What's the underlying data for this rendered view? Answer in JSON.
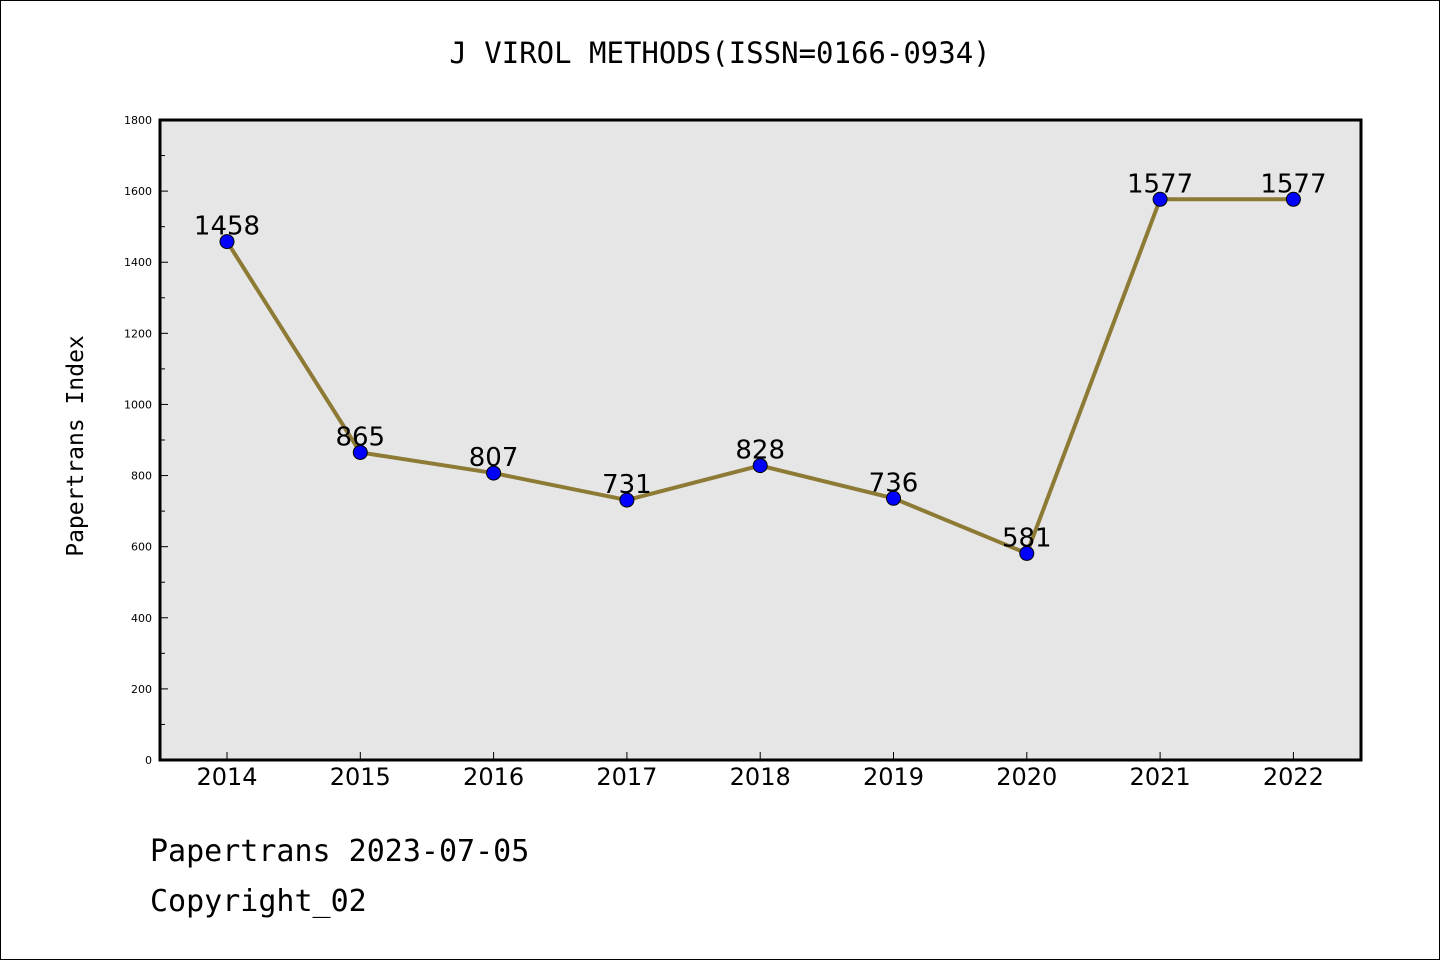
{
  "chart_data": {
    "type": "line",
    "title": "J VIROL METHODS(ISSN=0166-0934)",
    "xlabel": "",
    "ylabel": "Papertrans Index",
    "categories": [
      "2014",
      "2015",
      "2016",
      "2017",
      "2018",
      "2019",
      "2020",
      "2021",
      "2022"
    ],
    "series": [
      {
        "name": "Papertrans Index",
        "values": [
          1458,
          865,
          807,
          731,
          828,
          736,
          581,
          1577,
          1577
        ],
        "line_color": "#8c7a35",
        "marker_color": "#0000ff"
      }
    ],
    "data_labels": [
      "1458",
      "865",
      "807",
      "731",
      "828",
      "736",
      "581",
      "1577",
      "1577"
    ],
    "ylim": [
      0,
      1800
    ],
    "yticks": [
      0,
      200,
      400,
      600,
      800,
      1000,
      1200,
      1400,
      1600,
      1800
    ],
    "ytick_labels": [
      "0",
      "200",
      "400",
      "600",
      "800",
      "1000",
      "1200",
      "1400",
      "1600",
      "1800"
    ],
    "grid": false,
    "plot_background": "#e6e6e6"
  },
  "footer": {
    "date_text": "Papertrans 2023-07-05",
    "copyright_text": "Copyright_02"
  }
}
